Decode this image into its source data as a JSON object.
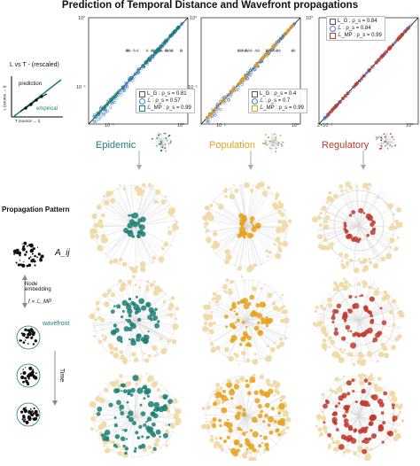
{
  "figure": {
    "title": "Prediction of Temporal Distance and Wavefront propagations",
    "left_title": "L vs T - (rescaled)",
    "inset": {
      "prediction": "prediction",
      "empirical": "empirical",
      "x_label": "T (source → i)",
      "y_label": "L (source → i)"
    },
    "section_title": "Propagation Pattern",
    "matrix_label": "A_ij",
    "embedding_label": "Node embedding",
    "formula": "f ∝ ℒ_MP",
    "wavefront_label": "wavefront",
    "time_label": "Time"
  },
  "columns": {
    "epidemic": "Epidemic",
    "population": "Population",
    "regulatory": "Regulatory"
  },
  "colors": {
    "epidemic": "#1a7f73",
    "population": "#e6a11a",
    "regulatory": "#c0392b",
    "pale_node": "#f1dba8"
  },
  "panel_ticks": {
    "p1": {
      "ytop": "10⁰",
      "ymid": "10⁻¹",
      "x1": "10⁻¹",
      "x2": "10⁰"
    },
    "p2": {
      "ytop": "10⁰",
      "ymid": "10⁻¹",
      "x1": "10⁻¹",
      "x2": "10⁰"
    },
    "p3": {
      "ytop": "10⁰",
      "x1": "2×10⁻¹",
      "x2": "10⁰"
    }
  },
  "legends": {
    "p1": [
      "L_G : ρ_s = 0.81",
      "ℒ : ρ_s = 0.57",
      "ℒ_MP : ρ_s = 0.99"
    ],
    "p2": [
      "L_G : ρ_s = 0.4",
      "ℒ : ρ_s = 0.7",
      "ℒ_MP : ρ_s = 0.99"
    ],
    "p3": [
      "L_G : ρ_s = 0.84",
      "ℒ : ρ_s = 0.84",
      "ℒ_MP : ρ_s = 0.99"
    ]
  },
  "legend_colors": {
    "p1": [
      "#555555",
      "#3a7bd5",
      "#1a7f73"
    ],
    "p2": [
      "#555555",
      "#3a7bd5",
      "#e6a11a"
    ],
    "p3": [
      "#555555",
      "#3a7bd5",
      "#c0392b"
    ]
  }
}
